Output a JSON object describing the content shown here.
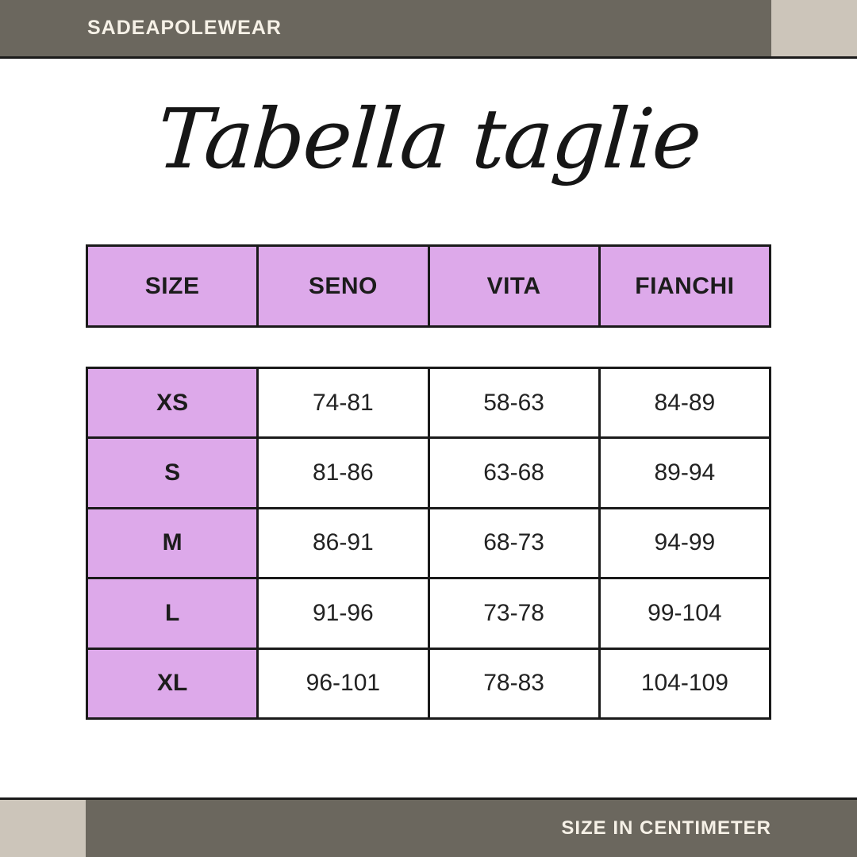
{
  "header": {
    "brand": "SADEAPOLEWEAR"
  },
  "title": "Tabella taglie",
  "footer": {
    "note": "SIZE IN CENTIMETER"
  },
  "table": {
    "headers": [
      "SIZE",
      "SENO",
      "VITA",
      "FIANCHI"
    ],
    "rows": [
      [
        "XS",
        "74-81",
        "58-63",
        "84-89"
      ],
      [
        "S",
        "81-86",
        "63-68",
        "89-94"
      ],
      [
        "M",
        "86-91",
        "68-73",
        "94-99"
      ],
      [
        "L",
        "91-96",
        "73-78",
        "99-104"
      ],
      [
        "XL",
        "96-101",
        "78-83",
        "104-109"
      ]
    ]
  },
  "chart_data": {
    "type": "table",
    "title": "Tabella taglie",
    "unit_note": "SIZE IN CENTIMETER",
    "columns": [
      "SIZE",
      "SENO",
      "VITA",
      "FIANCHI"
    ],
    "rows": [
      {
        "SIZE": "XS",
        "SENO": "74-81",
        "VITA": "58-63",
        "FIANCHI": "84-89"
      },
      {
        "SIZE": "S",
        "SENO": "81-86",
        "VITA": "63-68",
        "FIANCHI": "89-94"
      },
      {
        "SIZE": "M",
        "SENO": "86-91",
        "VITA": "68-73",
        "FIANCHI": "94-99"
      },
      {
        "SIZE": "L",
        "SENO": "91-96",
        "VITA": "73-78",
        "FIANCHI": "99-104"
      },
      {
        "SIZE": "XL",
        "SENO": "96-101",
        "VITA": "78-83",
        "FIANCHI": "104-109"
      }
    ]
  },
  "colors": {
    "bar": "#6b675e",
    "accent_block": "#ccc5ba",
    "table_purple": "#dda9ea",
    "border": "#1a1a1a",
    "bar_text": "#f6f1e7",
    "background": "#ffffff",
    "text": "#1c1c1c"
  }
}
